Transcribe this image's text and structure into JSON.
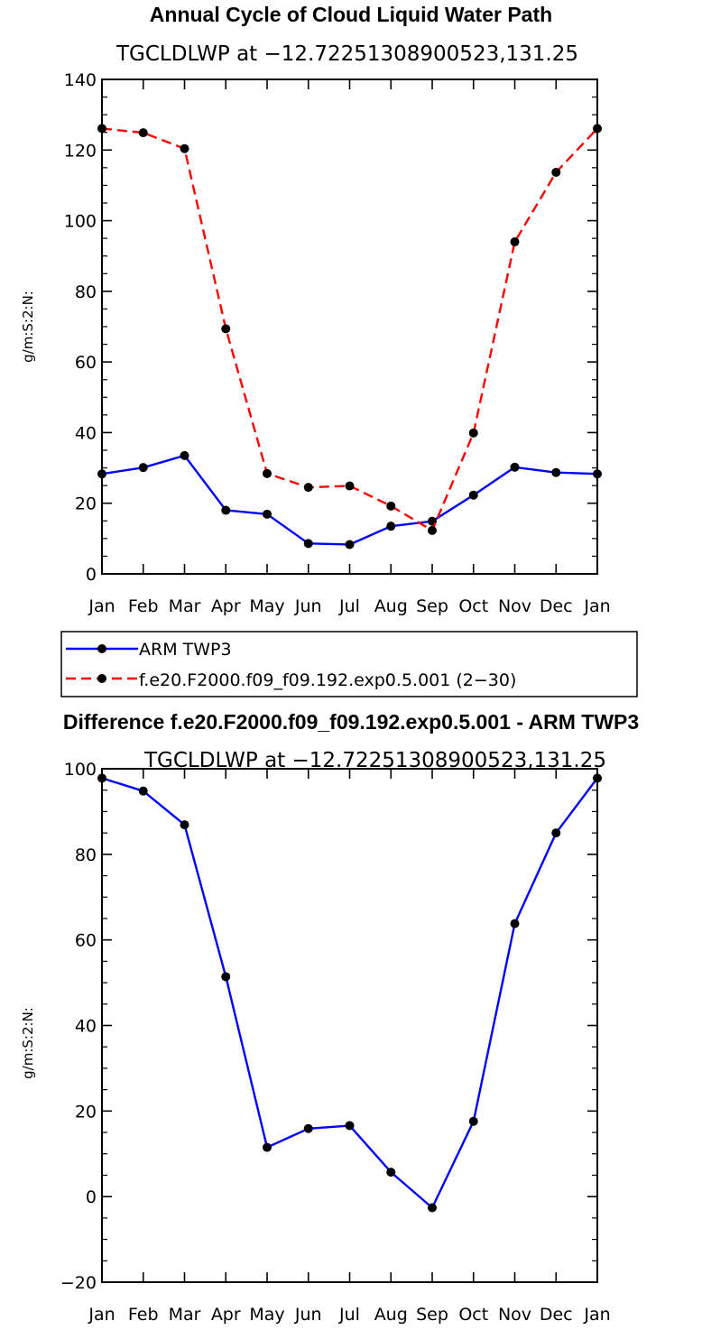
{
  "chart_data": [
    {
      "type": "line",
      "title": "Annual Cycle of Cloud Liquid Water Path",
      "subtitle": "TGCLDLWP at −12.72251308900523,131.25",
      "ylabel": "g/m:S:2:N:",
      "ylim": [
        0,
        140
      ],
      "yticks": [
        0,
        20,
        40,
        60,
        80,
        100,
        120,
        140
      ],
      "categories": [
        "Jan",
        "Feb",
        "Mar",
        "Apr",
        "May",
        "Jun",
        "Jul",
        "Aug",
        "Sep",
        "Oct",
        "Nov",
        "Dec",
        "Jan"
      ],
      "series": [
        {
          "name": "ARM TWP3",
          "color": "#0000ff",
          "dash": "solid",
          "values": [
            28.3,
            30.1,
            33.5,
            18.0,
            16.9,
            8.6,
            8.3,
            13.5,
            14.9,
            22.3,
            30.2,
            28.7,
            28.3
          ]
        },
        {
          "name": "f.e20.F2000.f09_f09.192.exp0.5.001 (2−30)",
          "color": "#ff0000",
          "dash": "dashed",
          "values": [
            126.1,
            124.9,
            120.4,
            69.4,
            28.4,
            24.5,
            24.9,
            19.2,
            12.3,
            39.9,
            94.0,
            113.7,
            126.1
          ]
        }
      ],
      "legend": "bottom-left"
    },
    {
      "type": "line",
      "title": "Difference f.e20.F2000.f09_f09.192.exp0.5.001 - ARM TWP3",
      "subtitle": "TGCLDLWP at −12.72251308900523,131.25",
      "ylabel": "g/m:S:2:N:",
      "ylim": [
        -20,
        100
      ],
      "yticks": [
        -20,
        0,
        20,
        40,
        60,
        80,
        100
      ],
      "categories": [
        "Jan",
        "Feb",
        "Mar",
        "Apr",
        "May",
        "Jun",
        "Jul",
        "Aug",
        "Sep",
        "Oct",
        "Nov",
        "Dec",
        "Jan"
      ],
      "series": [
        {
          "color": "#0000ff",
          "dash": "solid",
          "values": [
            97.8,
            94.8,
            86.9,
            51.4,
            11.5,
            15.9,
            16.6,
            5.7,
            -2.6,
            17.6,
            63.8,
            85.0,
            97.8
          ]
        }
      ]
    }
  ]
}
